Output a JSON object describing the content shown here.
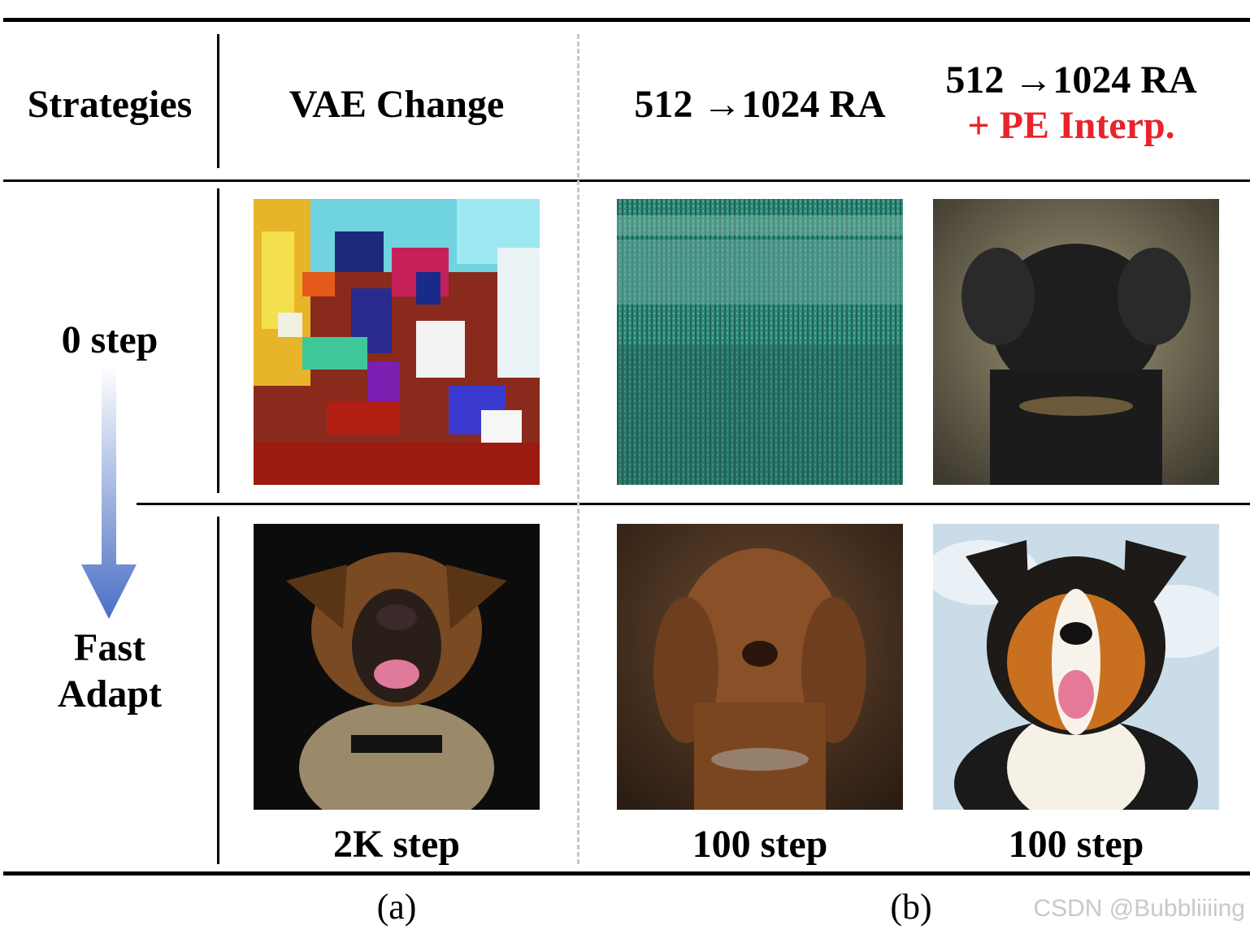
{
  "header": {
    "col0": "Strategies",
    "col1": "VAE Change",
    "col2": "512 →1024 RA",
    "col3_line1": "512 →1024 RA",
    "col3_line2": "+ PE Interp."
  },
  "rows": {
    "row1_label": "0 step",
    "row2_label_line1": "Fast",
    "row2_label_line2": "Adapt"
  },
  "step_labels": [
    "2K step",
    "100 step",
    "100 step"
  ],
  "subfigure_labels": {
    "a": "(a)",
    "b": "(b)"
  },
  "watermark": "CSDN @Bubbliiiing",
  "colors": {
    "highlight": "#e8242a",
    "arrow_top": "#ffffff",
    "arrow_bottom": "#4a6fc4"
  }
}
